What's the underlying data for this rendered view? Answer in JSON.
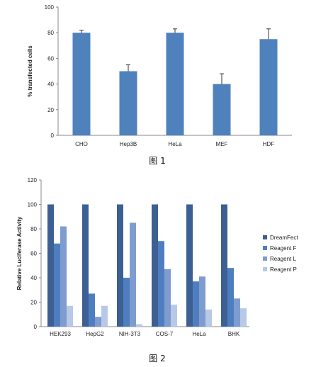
{
  "chart_data": [
    {
      "type": "bar",
      "categories": [
        "CHO",
        "Hep3B",
        "HeLa",
        "MEF",
        "HDF"
      ],
      "values": [
        80,
        50,
        80,
        40,
        75
      ],
      "error": [
        2,
        5,
        3,
        8,
        8
      ],
      "ylabel": "% transfected cells",
      "ylim": [
        0,
        100
      ],
      "yticks": [
        0,
        20,
        40,
        60,
        80,
        100
      ],
      "caption": "图 1",
      "color": "#4f81bd"
    },
    {
      "type": "bar",
      "categories": [
        "HEK293",
        "HepG2",
        "NIH-3T3",
        "COS-7",
        "HeLa",
        "BHK"
      ],
      "series": [
        {
          "name": "DreamFect",
          "values": [
            100,
            100,
            100,
            100,
            100,
            100
          ],
          "color": "#3c5f94"
        },
        {
          "name": "Reagent F",
          "values": [
            68,
            27,
            40,
            70,
            37,
            48
          ],
          "color": "#4f7ec0"
        },
        {
          "name": "Reagent L",
          "values": [
            82,
            8,
            85,
            47,
            41,
            23
          ],
          "color": "#7e9ccf"
        },
        {
          "name": "Reagent P",
          "values": [
            17,
            17,
            2,
            18,
            14,
            15
          ],
          "color": "#b8c9e8"
        }
      ],
      "ylabel": "Relative Luciferase Activity",
      "ylim": [
        0,
        120
      ],
      "yticks": [
        0,
        20,
        40,
        60,
        80,
        100,
        120
      ],
      "legend_position": "right",
      "caption": "图 2"
    }
  ]
}
